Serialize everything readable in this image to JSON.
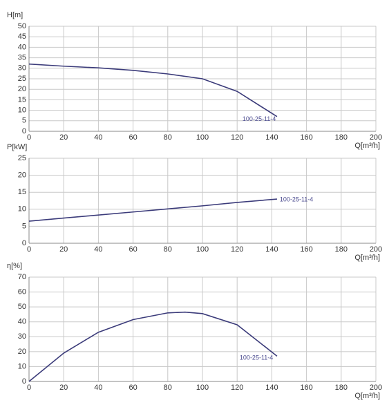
{
  "chart_data": [
    {
      "type": "line",
      "y_label": "H[m]",
      "x_label": "Q[m³/h]",
      "x": [
        0,
        20,
        40,
        60,
        80,
        100,
        120,
        143
      ],
      "series": [
        {
          "name": "100-25-11-4",
          "color": "#3b3b7a",
          "values": [
            32,
            31,
            30.2,
            29,
            27.3,
            25,
            19,
            7
          ]
        }
      ],
      "xlim": [
        0,
        200
      ],
      "xticks": [
        0,
        20,
        40,
        60,
        80,
        100,
        120,
        140,
        160,
        180,
        200
      ],
      "ylim": [
        0,
        50
      ],
      "yticks": [
        0,
        5,
        10,
        15,
        20,
        25,
        30,
        35,
        40,
        45,
        50
      ],
      "grid": true
    },
    {
      "type": "line",
      "y_label": "P[kW]",
      "x_label": "Q[m³/h]",
      "x": [
        0,
        20,
        40,
        60,
        80,
        100,
        120,
        143
      ],
      "series": [
        {
          "name": "100-25-11-4",
          "color": "#3b3b7a",
          "values": [
            6.5,
            7.4,
            8.3,
            9.2,
            10.1,
            11,
            12,
            13
          ]
        }
      ],
      "xlim": [
        0,
        200
      ],
      "xticks": [
        0,
        20,
        40,
        60,
        80,
        100,
        120,
        140,
        160,
        180,
        200
      ],
      "ylim": [
        0,
        25
      ],
      "yticks": [
        0,
        5,
        10,
        15,
        20,
        25
      ],
      "grid": true
    },
    {
      "type": "line",
      "y_label": "η[%]",
      "x_label": "Q[m³/h]",
      "x": [
        0,
        20,
        40,
        60,
        80,
        90,
        100,
        120,
        143
      ],
      "series": [
        {
          "name": "100-25-11-4",
          "color": "#3b3b7a",
          "values": [
            0,
            19,
            33,
            41.5,
            46,
            46.5,
            45.5,
            38,
            17
          ]
        }
      ],
      "xlim": [
        0,
        200
      ],
      "xticks": [
        0,
        20,
        40,
        60,
        80,
        100,
        120,
        140,
        160,
        180,
        200
      ],
      "ylim": [
        0,
        70
      ],
      "yticks": [
        0,
        10,
        20,
        30,
        40,
        50,
        60,
        70
      ],
      "grid": true
    }
  ]
}
